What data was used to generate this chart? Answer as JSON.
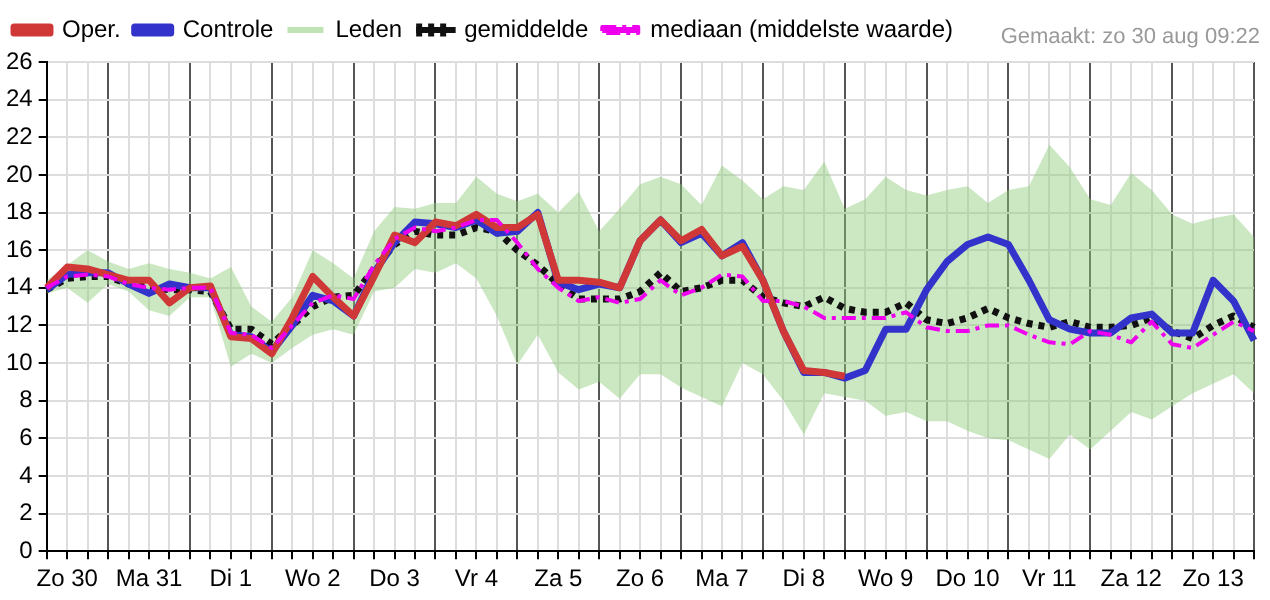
{
  "chart_data": {
    "type": "line",
    "annotations": [
      "Gemaakt: zo 30 aug 09:22"
    ],
    "categories": [
      null,
      "Zo 30",
      null,
      null,
      null,
      "Ma 31",
      null,
      null,
      null,
      "Di 1",
      null,
      null,
      null,
      "Wo 2",
      null,
      null,
      null,
      "Do 3",
      null,
      null,
      null,
      "Vr 4",
      null,
      null,
      null,
      "Za 5",
      null,
      null,
      null,
      "Zo 6",
      null,
      null,
      null,
      "Ma 7",
      null,
      null,
      null,
      "Di 8",
      null,
      null,
      null,
      "Wo 9",
      null,
      null,
      null,
      "Do 10",
      null,
      null,
      null,
      "Vr 11",
      null,
      null,
      null,
      "Za 12",
      null,
      null,
      null,
      "Zo 13",
      null,
      null
    ],
    "series": [
      {
        "name": "Oper.",
        "color": "#d03838",
        "line_style": "solid",
        "values": [
          14.0,
          15.1,
          15.0,
          14.7,
          14.4,
          14.4,
          13.2,
          14.0,
          14.1,
          11.4,
          11.3,
          10.5,
          12.4,
          14.6,
          13.5,
          12.5,
          14.6,
          16.8,
          16.4,
          17.5,
          17.3,
          17.9,
          17.2,
          17.2,
          17.9,
          14.4,
          14.4,
          14.3,
          14.0,
          16.5,
          17.6,
          16.5,
          17.1,
          15.7,
          16.2,
          14.4,
          11.7,
          9.6,
          9.5,
          9.3,
          null,
          null,
          null,
          null,
          null,
          null,
          null,
          null,
          null,
          null,
          null,
          null,
          null,
          null,
          null,
          null,
          null,
          null,
          null,
          null
        ]
      },
      {
        "name": "Controle",
        "color": "#3333cc",
        "line_style": "solid",
        "values": [
          13.9,
          14.7,
          14.8,
          14.8,
          14.2,
          13.7,
          14.2,
          14.0,
          14.0,
          11.5,
          11.4,
          10.6,
          12.0,
          13.6,
          13.3,
          12.5,
          14.8,
          16.4,
          17.5,
          17.4,
          17.2,
          17.6,
          16.9,
          17.0,
          18.0,
          14.3,
          13.9,
          14.2,
          14.0,
          16.5,
          17.6,
          16.4,
          16.9,
          15.7,
          16.4,
          14.4,
          11.7,
          9.5,
          9.5,
          9.2,
          9.6,
          11.8,
          11.8,
          13.9,
          15.4,
          16.3,
          16.7,
          16.3,
          14.4,
          12.3,
          11.8,
          11.6,
          11.6,
          12.4,
          12.6,
          11.6,
          11.6,
          14.4,
          13.3,
          11.2
        ]
      },
      {
        "name": "Leden",
        "color": "#8ccc78",
        "line_style": "solid",
        "values": [
          null,
          null,
          null,
          null,
          null,
          null,
          null,
          null,
          null,
          null,
          null,
          null,
          null,
          null,
          null,
          null,
          null,
          null,
          null,
          null,
          null,
          null,
          null,
          null,
          null,
          null,
          null,
          null,
          null,
          null,
          null,
          null,
          null,
          null,
          null,
          null,
          null,
          null,
          null,
          null,
          null,
          null,
          null,
          null,
          null,
          null,
          null,
          null,
          null,
          null,
          null,
          null,
          null,
          null,
          null,
          null,
          null,
          null,
          null,
          null
        ],
        "lower": [
          13.7,
          14.0,
          13.2,
          14.2,
          13.8,
          12.8,
          12.5,
          13.5,
          13.5,
          9.8,
          10.5,
          10.0,
          10.8,
          11.5,
          11.8,
          11.5,
          13.8,
          14.0,
          15.0,
          14.8,
          15.3,
          14.5,
          12.5,
          9.9,
          11.5,
          9.5,
          8.6,
          9.0,
          8.1,
          9.4,
          9.4,
          8.7,
          8.2,
          7.7,
          10.0,
          9.4,
          8.0,
          6.2,
          8.4,
          8.2,
          8.0,
          7.2,
          7.4,
          6.9,
          6.9,
          6.4,
          6.0,
          5.9,
          5.4,
          4.9,
          6.2,
          5.4,
          6.4,
          7.4,
          7.0,
          7.7,
          8.4,
          8.9,
          9.4,
          8.4
        ],
        "upper": [
          14.4,
          15.2,
          16.0,
          15.4,
          15.0,
          15.3,
          15.0,
          14.8,
          14.5,
          15.1,
          13.0,
          12.2,
          13.5,
          16.0,
          15.3,
          14.5,
          17.0,
          18.3,
          18.2,
          18.5,
          18.5,
          19.9,
          19.0,
          18.6,
          19.0,
          18.0,
          19.1,
          17.0,
          18.2,
          19.5,
          19.9,
          19.5,
          18.4,
          20.5,
          19.7,
          18.7,
          19.4,
          19.2,
          20.7,
          18.2,
          18.7,
          19.9,
          19.2,
          18.9,
          19.2,
          19.4,
          18.5,
          19.2,
          19.4,
          21.6,
          20.4,
          18.7,
          18.4,
          20.1,
          19.2,
          17.9,
          17.4,
          17.7,
          17.9,
          16.7
        ]
      },
      {
        "name": "gemiddelde",
        "color": "#111111",
        "line_style": "dotted",
        "values": [
          13.9,
          14.5,
          14.6,
          14.6,
          14.2,
          14.0,
          13.9,
          13.9,
          13.8,
          11.8,
          11.8,
          11.0,
          12.0,
          13.0,
          13.5,
          13.6,
          15.0,
          16.3,
          17.0,
          16.8,
          16.8,
          17.2,
          17.0,
          16.0,
          15.2,
          14.2,
          13.4,
          13.4,
          13.4,
          13.8,
          14.8,
          13.8,
          14.0,
          14.4,
          14.4,
          13.5,
          13.2,
          13.0,
          13.5,
          12.9,
          12.7,
          12.7,
          13.2,
          12.3,
          12.1,
          12.4,
          12.9,
          12.4,
          12.1,
          11.9,
          12.2,
          11.9,
          11.9,
          12.0,
          12.4,
          11.7,
          11.3,
          12.0,
          12.5,
          11.9
        ]
      },
      {
        "name": "mediaan (middelste waarde)",
        "color": "#ee00ee",
        "line_style": "dashed",
        "values": [
          14.0,
          14.6,
          14.7,
          14.6,
          14.2,
          14.0,
          13.9,
          14.0,
          14.0,
          11.6,
          11.5,
          10.8,
          12.0,
          13.2,
          13.6,
          13.4,
          15.2,
          16.6,
          17.2,
          17.0,
          17.2,
          17.6,
          17.6,
          16.4,
          15.0,
          14.0,
          13.3,
          13.5,
          13.2,
          13.4,
          14.4,
          13.6,
          14.0,
          14.7,
          14.6,
          13.3,
          13.3,
          13.0,
          12.4,
          12.4,
          12.4,
          12.4,
          12.7,
          11.9,
          11.7,
          11.7,
          12.0,
          12.0,
          11.5,
          11.1,
          11.0,
          11.7,
          11.5,
          11.1,
          12.2,
          11.0,
          10.8,
          11.5,
          12.2,
          11.7
        ]
      }
    ],
    "ylim": [
      0,
      26
    ],
    "yticks": [
      0,
      2,
      4,
      6,
      8,
      10,
      12,
      14,
      16,
      18,
      20,
      22,
      24,
      26
    ],
    "grid": true,
    "legend": "top",
    "marker": "none"
  }
}
